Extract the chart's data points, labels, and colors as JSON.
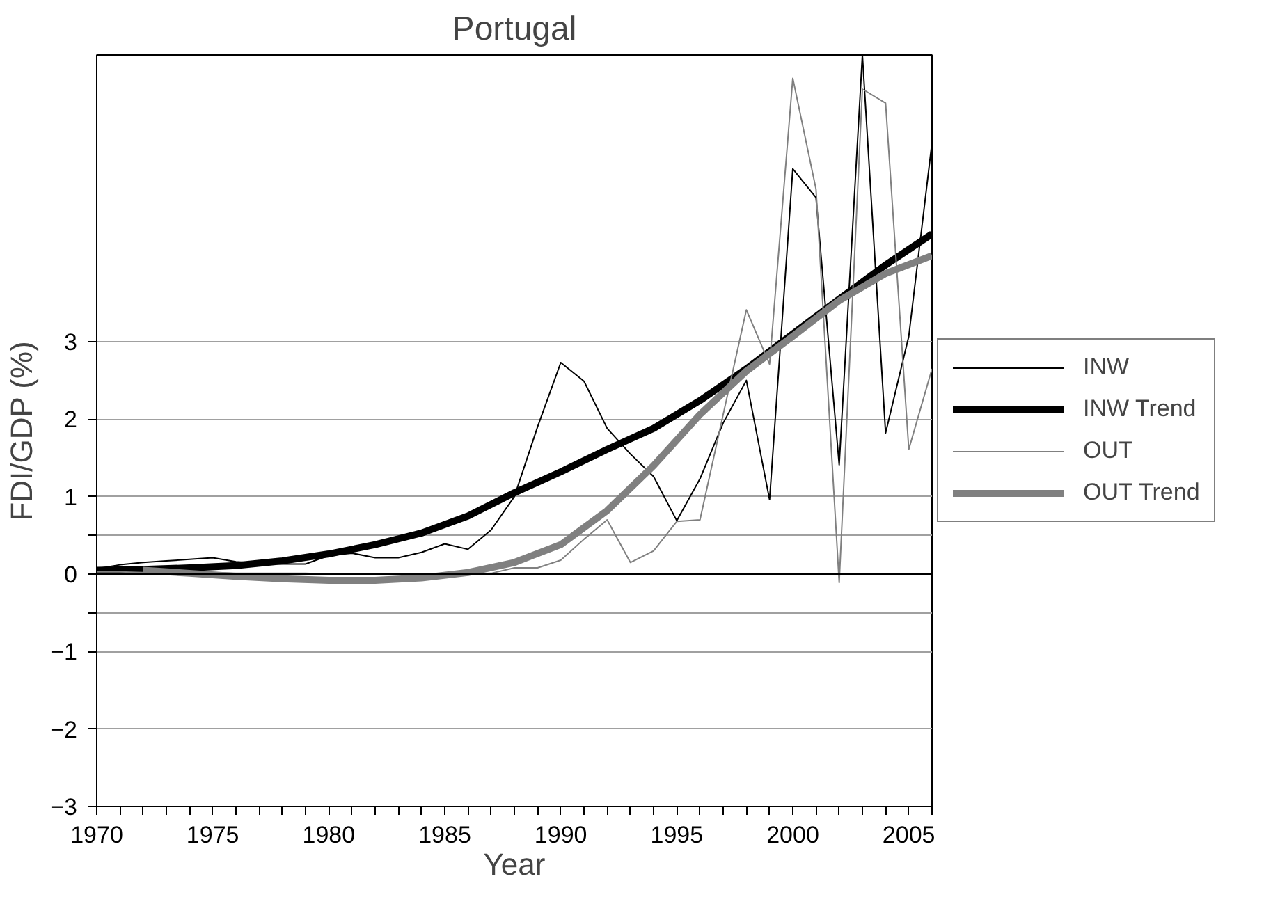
{
  "chart_data": {
    "type": "line",
    "title": "Portugal",
    "xlabel": "Year",
    "ylabel": "FDI/GDP (%)",
    "xlim": [
      1970,
      2006
    ],
    "ylim": [
      -3,
      6.7
    ],
    "xticks": [
      1970,
      {
        "value": 1971,
        "label": null
      },
      {
        "value": 1972,
        "label": null
      },
      {
        "value": 1973,
        "label": null
      },
      {
        "value": 1974,
        "label": null
      },
      1975,
      {
        "value": 1976,
        "label": null
      },
      {
        "value": 1977,
        "label": null
      },
      {
        "value": 1978,
        "label": null
      },
      {
        "value": 1979,
        "label": null
      },
      1980,
      {
        "value": 1981,
        "label": null
      },
      {
        "value": 1982,
        "label": null
      },
      {
        "value": 1983,
        "label": null
      },
      {
        "value": 1984,
        "label": null
      },
      1985,
      {
        "value": 1986,
        "label": null
      },
      {
        "value": 1987,
        "label": null
      },
      {
        "value": 1988,
        "label": null
      },
      {
        "value": 1989,
        "label": null
      },
      1990,
      {
        "value": 1991,
        "label": null
      },
      {
        "value": 1992,
        "label": null
      },
      {
        "value": 1993,
        "label": null
      },
      {
        "value": 1994,
        "label": null
      },
      1995,
      {
        "value": 1996,
        "label": null
      },
      {
        "value": 1997,
        "label": null
      },
      {
        "value": 1998,
        "label": null
      },
      {
        "value": 1999,
        "label": null
      },
      2000,
      {
        "value": 2001,
        "label": null
      },
      {
        "value": 2002,
        "label": null
      },
      {
        "value": 2003,
        "label": null
      },
      {
        "value": 2004,
        "label": null
      },
      2005,
      {
        "value": 2006,
        "label": null
      }
    ],
    "yticks": [
      -3,
      -2,
      -1,
      {
        "value": -0.5,
        "label": null
      },
      0,
      {
        "value": 0.5,
        "label": null
      },
      1,
      2,
      3
    ],
    "grid": "y",
    "legend": "right",
    "marker": "none",
    "line_style": "solid",
    "ref_lines": [
      {
        "axis": "y",
        "value": 0,
        "color": "#000000"
      }
    ],
    "series": [
      {
        "name": "INW",
        "color": "#000000",
        "x": [
          1970,
          1971,
          1972,
          1973,
          1974,
          1975,
          1976,
          1977,
          1978,
          1979,
          1980,
          1981,
          1982,
          1983,
          1984,
          1985,
          1986,
          1987,
          1988,
          1989,
          1990,
          1991,
          1992,
          1993,
          1994,
          1995,
          1996,
          1997,
          1998,
          1999,
          2000,
          2001,
          2002,
          2003,
          2004,
          2005,
          2006
        ],
        "values": [
          0.07,
          0.12,
          0.15,
          0.17,
          0.19,
          0.21,
          0.16,
          0.14,
          0.13,
          0.13,
          0.24,
          0.27,
          0.21,
          0.21,
          0.28,
          0.39,
          0.32,
          0.57,
          1.0,
          1.9,
          2.73,
          2.49,
          1.88,
          1.55,
          1.26,
          0.69,
          1.23,
          1.95,
          2.5,
          0.96,
          5.23,
          4.86,
          1.41,
          6.7,
          1.82,
          3.07,
          5.57
        ]
      },
      {
        "name": "INW Trend",
        "color": "#000000",
        "x": [
          1970,
          1972,
          1974,
          1976,
          1978,
          1980,
          1982,
          1984,
          1986,
          1988,
          1990,
          1992,
          1994,
          1996,
          1998,
          2000,
          2002,
          2004,
          2006
        ],
        "values": [
          0.05,
          0.06,
          0.08,
          0.11,
          0.17,
          0.26,
          0.38,
          0.53,
          0.75,
          1.05,
          1.32,
          1.61,
          1.88,
          2.24,
          2.65,
          3.1,
          3.55,
          3.99,
          4.39
        ]
      },
      {
        "name": "OUT",
        "color": "#808080",
        "x": [
          1970,
          1971,
          1972,
          1973,
          1974,
          1975,
          1976,
          1977,
          1978,
          1979,
          1980,
          1981,
          1982,
          1983,
          1984,
          1985,
          1986,
          1987,
          1988,
          1989,
          1990,
          1991,
          1992,
          1993,
          1994,
          1995,
          1996,
          1997,
          1998,
          1999,
          2000,
          2001,
          2002,
          2003,
          2004,
          2005,
          2006
        ],
        "values": [
          0.03,
          0.03,
          0.02,
          0.02,
          0.02,
          0.02,
          0.01,
          0.01,
          0.01,
          0.01,
          0.0,
          0.0,
          0.0,
          0.0,
          0.0,
          0.0,
          0.0,
          0.01,
          0.08,
          0.08,
          0.18,
          0.45,
          0.7,
          0.15,
          0.3,
          0.68,
          0.7,
          2.06,
          3.41,
          2.71,
          6.4,
          4.97,
          -0.11,
          6.26,
          6.08,
          1.61,
          2.65
        ]
      },
      {
        "name": "OUT Trend",
        "color": "#808080",
        "x": [
          1972,
          1974,
          1976,
          1978,
          1980,
          1982,
          1984,
          1986,
          1988,
          1990,
          1992,
          1994,
          1996,
          1998,
          2000,
          2002,
          2004,
          2006
        ],
        "values": [
          0.05,
          0.01,
          -0.03,
          -0.06,
          -0.08,
          -0.08,
          -0.05,
          0.02,
          0.15,
          0.38,
          0.82,
          1.4,
          2.06,
          2.62,
          3.07,
          3.53,
          3.88,
          4.11
        ]
      }
    ]
  }
}
